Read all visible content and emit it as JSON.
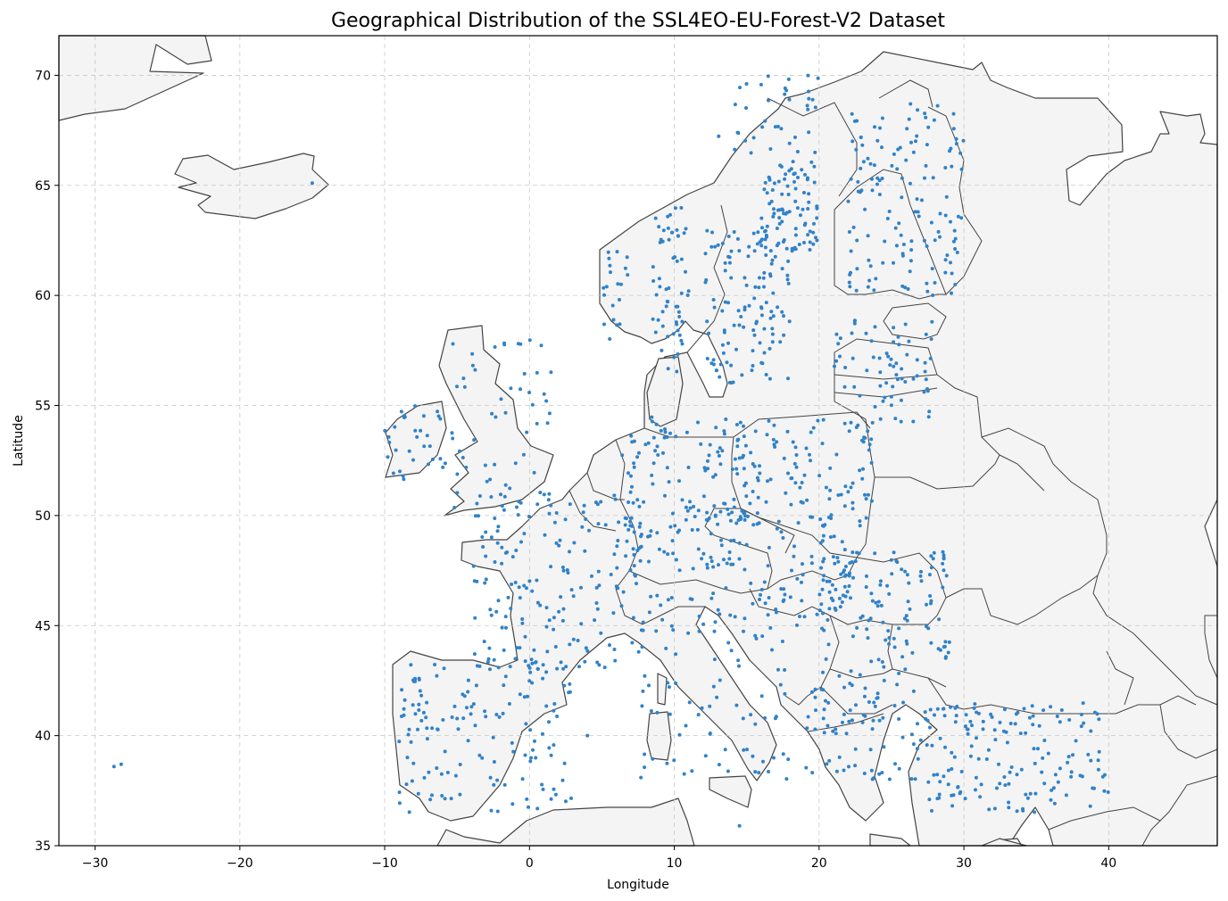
{
  "chart_data": {
    "type": "scatter",
    "title": "Geographical Distribution of the SSL4EO-EU-Forest-V2 Dataset",
    "xlabel": "Longitude",
    "ylabel": "Latitude",
    "xlim": [
      -32.5,
      47.5
    ],
    "ylim": [
      35,
      71.8
    ],
    "x_ticks": [
      -30,
      -20,
      -10,
      0,
      10,
      20,
      30,
      40
    ],
    "y_ticks": [
      35,
      40,
      45,
      50,
      55,
      60,
      65,
      70
    ],
    "x_tick_labels": [
      "−30",
      "−20",
      "−10",
      "0",
      "10",
      "20",
      "30",
      "40"
    ],
    "y_tick_labels": [
      "35",
      "40",
      "45",
      "50",
      "55",
      "60",
      "65",
      "70"
    ],
    "grid": true,
    "point_color": "#3182c8",
    "land_color": "#f4f4f4",
    "border_color": "#444444",
    "series": [
      {
        "regions": [
          {
            "lon": [
              8.5,
              11
            ],
            "lat": [
              56.5,
              64
            ],
            "n": 60
          },
          {
            "lon": [
              12,
              18
            ],
            "lat": [
              56,
              63
            ],
            "n": 120
          },
          {
            "lon": [
              16,
              20
            ],
            "lat": [
              62,
              66
            ],
            "n": 90
          },
          {
            "lon": [
              13,
              20
            ],
            "lat": [
              66,
              70
            ],
            "n": 40
          },
          {
            "lon": [
              22,
              30
            ],
            "lat": [
              60,
              69
            ],
            "n": 140
          },
          {
            "lon": [
              21,
              28
            ],
            "lat": [
              54,
              59
            ],
            "n": 70
          },
          {
            "lon": [
              14,
              24
            ],
            "lat": [
              49.5,
              54.5
            ],
            "n": 120
          },
          {
            "lon": [
              6,
              15
            ],
            "lat": [
              47.5,
              54.5
            ],
            "n": 150
          },
          {
            "lon": [
              -4,
              8
            ],
            "lat": [
              43,
              51
            ],
            "n": 170
          },
          {
            "lon": [
              -9,
              3
            ],
            "lat": [
              36.5,
              43.5
            ],
            "n": 150
          },
          {
            "lon": [
              7,
              18
            ],
            "lat": [
              38,
              46.5
            ],
            "n": 100
          },
          {
            "lon": [
              13,
              22
            ],
            "lat": [
              45,
              49.5
            ],
            "n": 70
          },
          {
            "lon": [
              20,
              29
            ],
            "lat": [
              43.5,
              48.5
            ],
            "n": 110
          },
          {
            "lon": [
              19,
              27
            ],
            "lat": [
              38,
              43.5
            ],
            "n": 90
          },
          {
            "lon": [
              27,
              40
            ],
            "lat": [
              36.5,
              41.5
            ],
            "n": 160
          },
          {
            "lon": [
              -10,
              -6
            ],
            "lat": [
              51.5,
              55
            ],
            "n": 30
          },
          {
            "lon": [
              -6,
              1.5
            ],
            "lat": [
              50,
              58
            ],
            "n": 60
          },
          {
            "lon": [
              5,
              7
            ],
            "lat": [
              58,
              62
            ],
            "n": 20
          }
        ]
      },
      {
        "points": [
          [
            -28.7,
            38.6
          ],
          [
            -28.2,
            38.7
          ],
          [
            -15,
            65.1
          ],
          [
            4,
            40
          ],
          [
            1.5,
            39.1
          ],
          [
            14.5,
            35.9
          ]
        ]
      }
    ]
  }
}
